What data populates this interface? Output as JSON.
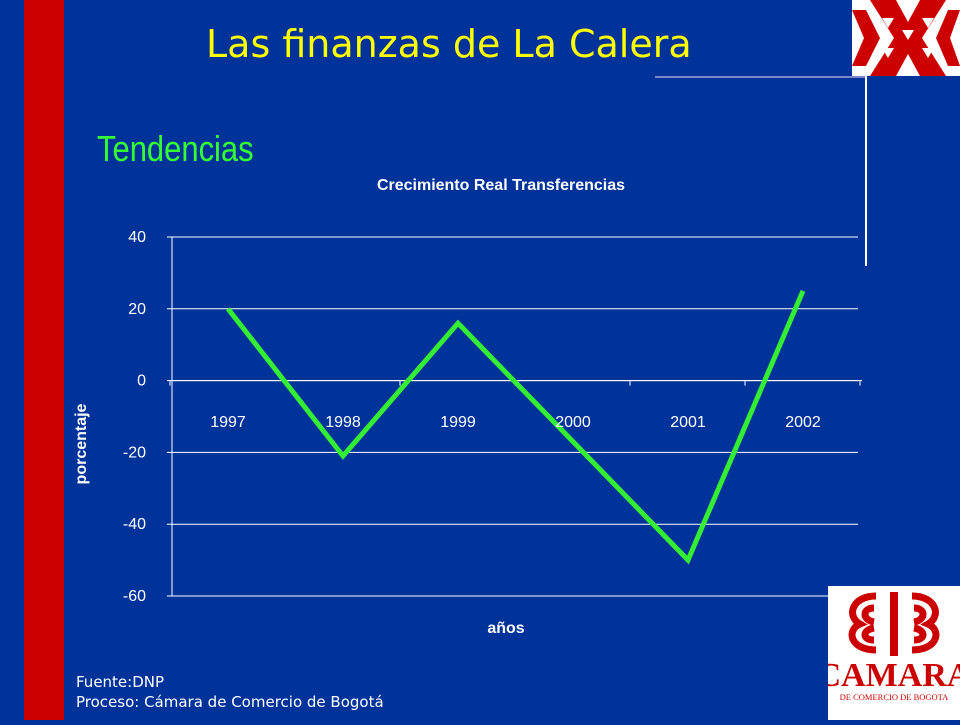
{
  "slide": {
    "title": "Las finanzas de La Calera",
    "section_title": "Tendencias",
    "footer_source": "Fuente:DNP",
    "footer_process": "Proceso: Cámara de Comercio de Bogotá",
    "logo_text": "CAMARA",
    "logo_subtext": "DE COMERCIO DE BOGOTA"
  },
  "colors": {
    "background": "#003399",
    "accent_bar": "#cc0000",
    "title": "#ffff00",
    "section_title": "#33ff33",
    "line": "#33ee33",
    "text": "#ffffff"
  },
  "chart_data": {
    "type": "line",
    "title": "Crecimiento Real Transferencias",
    "xlabel": "años",
    "ylabel": "porcentaje",
    "categories": [
      "1997",
      "1998",
      "1999",
      "2000",
      "2001",
      "2002"
    ],
    "series": [
      {
        "values": [
          20,
          -21,
          16,
          -17,
          -50,
          25
        ]
      }
    ],
    "ylim": [
      -60,
      40
    ],
    "yticks": [
      "40",
      "20",
      "0",
      "-20",
      "-40",
      "-60"
    ],
    "grid": true,
    "legend": "none",
    "x_labels_position": "below zero line"
  }
}
